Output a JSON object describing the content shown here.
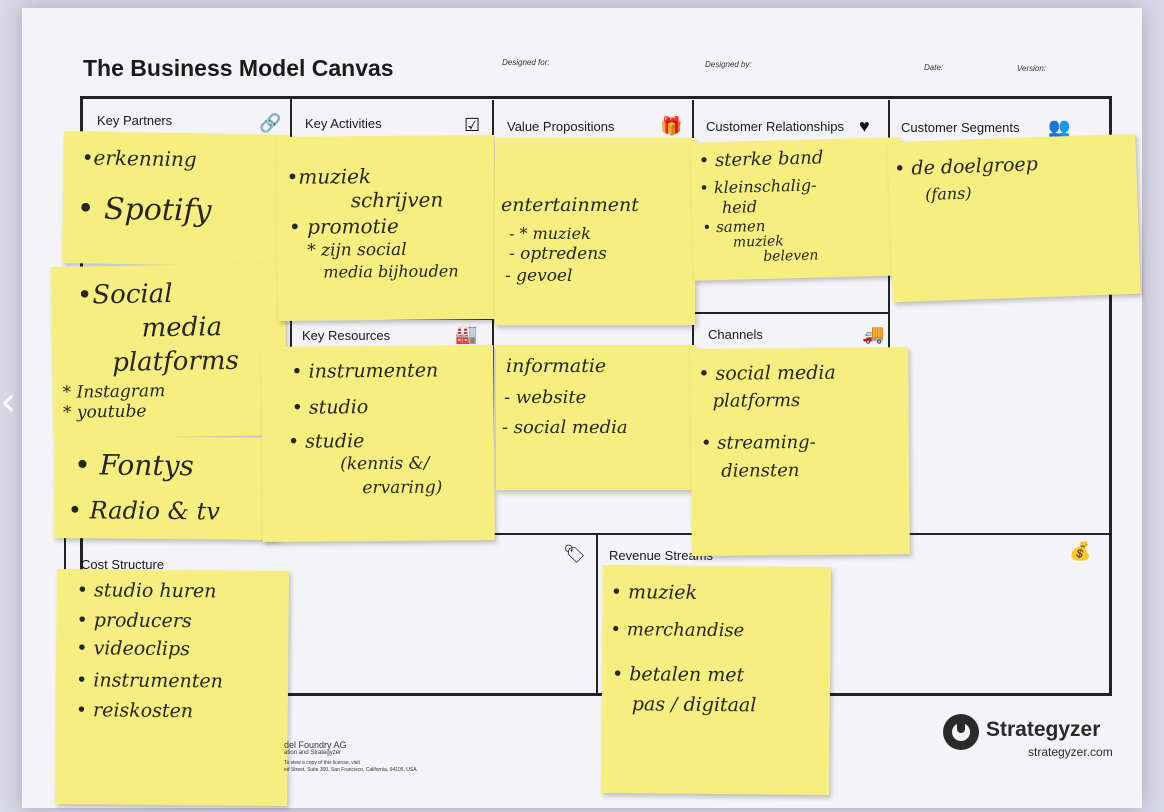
{
  "canvas": {
    "title": "The Business Model Canvas",
    "designed_for_label": "Designed for:",
    "designed_by_label": "Designed by:",
    "date_label": "Date:",
    "version_label": "Version:"
  },
  "blocks": {
    "key_partners": {
      "label": "Key Partners",
      "icon": "link-icon"
    },
    "key_activities": {
      "label": "Key Activities",
      "icon": "checkbox-icon"
    },
    "value_propositions": {
      "label": "Value Propositions",
      "icon": "gift-icon"
    },
    "customer_relationships": {
      "label": "Customer Relationships",
      "icon": "heart-icon"
    },
    "customer_segments": {
      "label": "Customer Segments",
      "icon": "people-icon"
    },
    "key_resources": {
      "label": "Key Resources",
      "icon": "factory-icon"
    },
    "channels": {
      "label": "Channels",
      "icon": "truck-icon"
    },
    "cost_structure": {
      "label": "Cost Structure",
      "icon": "tag-icon"
    },
    "revenue_streams": {
      "label": "Revenue Streams",
      "icon": "money-bag-icon"
    }
  },
  "notes": {
    "kp1": [
      "•erkenning",
      "• Spotify"
    ],
    "kp2": [
      "•Social",
      "media",
      "platforms",
      "* Instagram",
      "* youtube"
    ],
    "kp3": [
      "• Fontys",
      "• Radio & tv"
    ],
    "ka1": [
      "•muziek",
      "schrijven",
      "• promotie",
      "* zijn social",
      "media bijhouden"
    ],
    "vp1": [
      "entertainment",
      "- * muziek",
      "- optredens",
      "- gevoel"
    ],
    "cr1": [
      "• sterke band",
      "• kleinschalig-",
      "heid",
      "• samen",
      "muziek",
      "beleven"
    ],
    "cs1": [
      "• de doelgroep",
      "(fans)"
    ],
    "kr1": [
      "• instrumenten",
      "• studio",
      "• studie",
      "(kennis &/",
      "ervaring)"
    ],
    "vp2": [
      "informatie",
      "- website",
      "- social media"
    ],
    "ch1": [
      "• social media",
      "platforms",
      "• streaming-",
      "diensten"
    ],
    "cost1": [
      "• studio huren",
      "• producers",
      "• videoclips",
      "• instrumenten",
      "• reiskosten"
    ],
    "rev1": [
      "• muziek",
      "• merchandise",
      "• betalen met",
      "pas / digitaal"
    ]
  },
  "footer": {
    "left_line1": "del Foundry AG",
    "left_line2": "ation and Strategyzer",
    "left_line3": "To view a copy of this license, visit",
    "left_line4": "ed Street, Suite 300, San Francisco, California, 94105, USA.",
    "brand": "Strategyzer",
    "url": "strategyzer.com"
  },
  "colors": {
    "sticky": "#f6ef7f",
    "ink": "#262626",
    "grid": "#222222"
  }
}
